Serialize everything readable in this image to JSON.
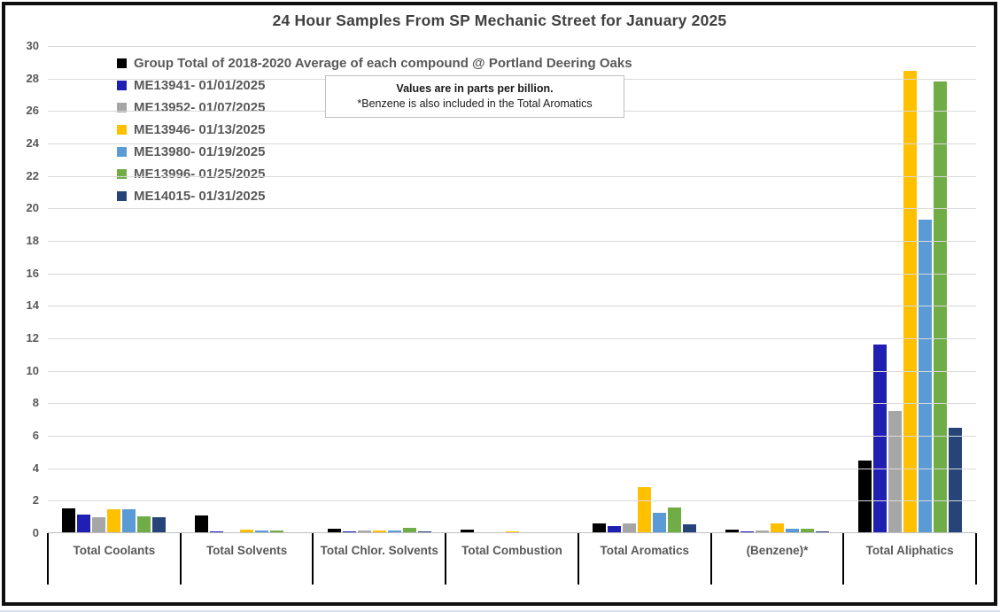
{
  "chart_data": {
    "type": "bar",
    "title": "24 Hour Samples From SP Mechanic Street for January 2025",
    "note_line1": "Values are in parts per billion.",
    "note_line2": "*Benzene is also included in the Total Aromatics",
    "categories": [
      "Total Coolants",
      "Total Solvents",
      "Total Chlor. Solvents",
      "Total Combustion",
      "Total Aromatics",
      "(Benzene)*",
      "Total Aliphatics"
    ],
    "series": [
      {
        "name": "Group Total of 2018-2020 Average of each compound @ Portland Deering Oaks",
        "color": "#000000",
        "values": [
          1.55,
          1.1,
          0.3,
          0.2,
          0.6,
          0.2,
          4.5
        ]
      },
      {
        "name": "ME13941- 01/01/2025",
        "color": "#1F1FB4",
        "values": [
          1.15,
          0.1,
          0.1,
          0,
          0.45,
          0.1,
          11.6
        ]
      },
      {
        "name": "ME13952- 01/07/2025",
        "color": "#A6A6A6",
        "values": [
          1.0,
          0.05,
          0.15,
          0,
          0.6,
          0.15,
          7.55
        ]
      },
      {
        "name": "ME13946- 01/13/2025",
        "color": "#FFC000",
        "values": [
          1.5,
          0.2,
          0.15,
          0.1,
          2.85,
          0.6,
          28.5
        ]
      },
      {
        "name": "ME13980- 01/19/2025",
        "color": "#5B9BD5",
        "values": [
          1.45,
          0.15,
          0.15,
          0,
          1.25,
          0.3,
          19.3
        ]
      },
      {
        "name": "ME13996- 01/25/2025",
        "color": "#70AD47",
        "values": [
          1.05,
          0.15,
          0.35,
          0.05,
          1.6,
          0.3,
          27.8
        ]
      },
      {
        "name": "ME14015- 01/31/2025",
        "color": "#264478",
        "values": [
          1.0,
          0,
          0.1,
          0,
          0.55,
          0.1,
          6.5
        ]
      }
    ],
    "ylim": [
      0,
      30
    ],
    "ytick_step": 2,
    "grid": true,
    "legend_position": "upper-left-inside",
    "xlabel": "",
    "ylabel": "",
    "units": "parts per billion"
  }
}
